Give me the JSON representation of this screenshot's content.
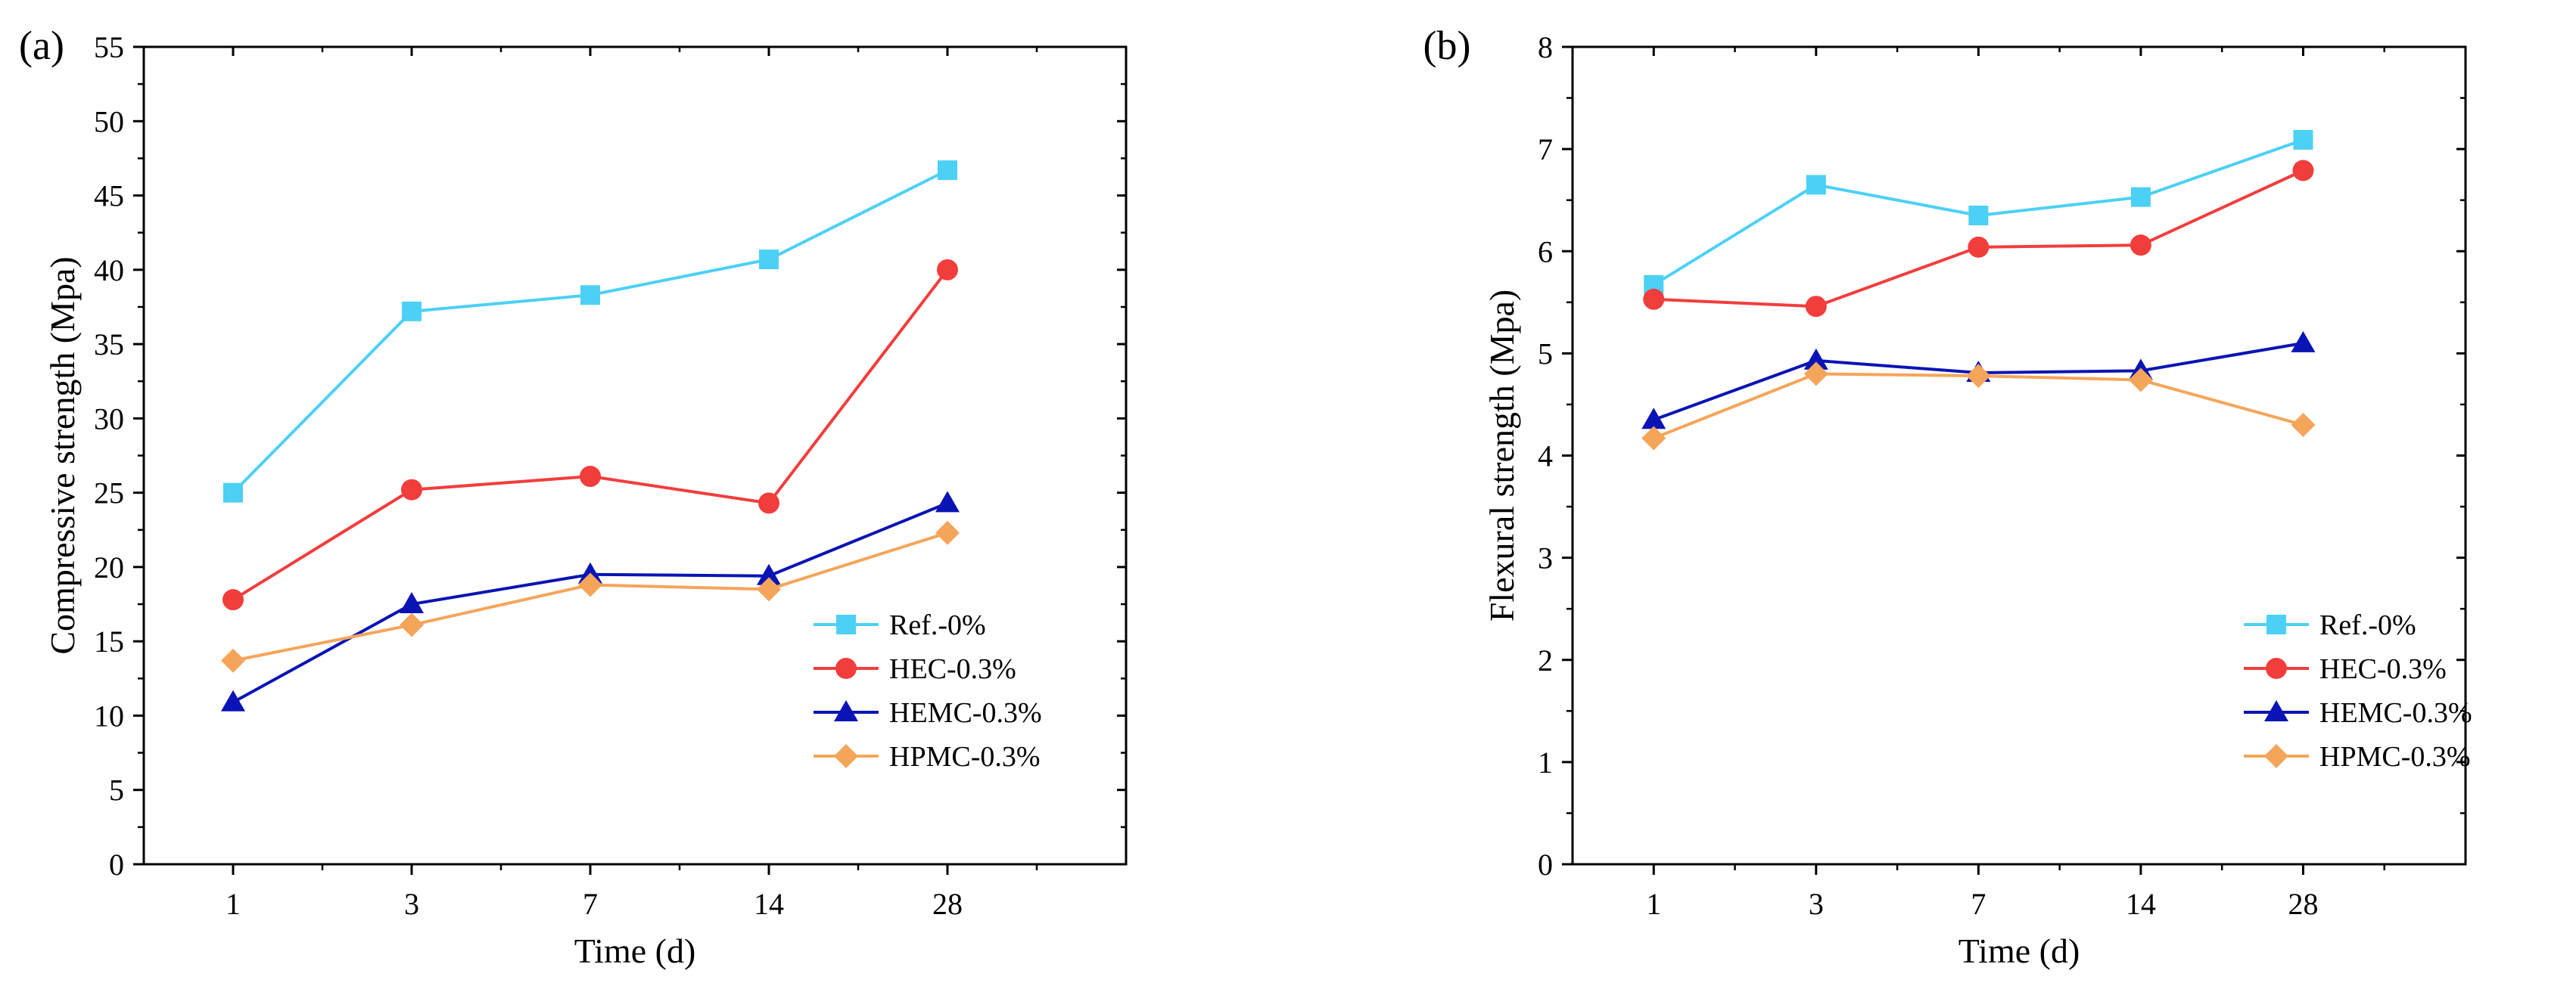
{
  "chart_data": [
    {
      "type": "line",
      "panel_label": "(a)",
      "xlabel": "Time (d)",
      "ylabel": "Compressive strength (Mpa)",
      "categories": [
        "1",
        "3",
        "7",
        "14",
        "28"
      ],
      "ylim": [
        0,
        55
      ],
      "yticks": [
        "0",
        "5",
        "10",
        "15",
        "20",
        "25",
        "30",
        "35",
        "40",
        "45",
        "50",
        "55"
      ],
      "legend_position": "lower-right",
      "series": [
        {
          "name": "Ref.-0%",
          "values": [
            25.0,
            37.2,
            38.3,
            40.7,
            46.7
          ],
          "color": "#4dd0f5",
          "marker": "square"
        },
        {
          "name": "HEC-0.3%",
          "values": [
            17.8,
            25.2,
            26.1,
            24.3,
            40.0
          ],
          "color": "#f23d3d",
          "marker": "circle"
        },
        {
          "name": "HEMC-0.3%",
          "values": [
            10.9,
            17.5,
            19.5,
            19.4,
            24.3
          ],
          "color": "#0a14b4",
          "marker": "triangle"
        },
        {
          "name": "HPMC-0.3%",
          "values": [
            13.7,
            16.1,
            18.8,
            18.5,
            22.3
          ],
          "color": "#f5a55a",
          "marker": "diamond"
        }
      ]
    },
    {
      "type": "line",
      "panel_label": "(b)",
      "xlabel": "Time (d)",
      "ylabel": "Flexural strength (Mpa)",
      "categories": [
        "1",
        "3",
        "7",
        "14",
        "28"
      ],
      "ylim": [
        0,
        8
      ],
      "yticks": [
        "0",
        "1",
        "2",
        "3",
        "4",
        "5",
        "6",
        "7",
        "8"
      ],
      "legend_position": "lower-right",
      "series": [
        {
          "name": "Ref.-0%",
          "values": [
            5.67,
            6.65,
            6.35,
            6.53,
            7.09
          ],
          "color": "#4dd0f5",
          "marker": "square"
        },
        {
          "name": "HEC-0.3%",
          "values": [
            5.53,
            5.46,
            6.04,
            6.06,
            6.79
          ],
          "color": "#f23d3d",
          "marker": "circle"
        },
        {
          "name": "HEMC-0.3%",
          "values": [
            4.35,
            4.93,
            4.81,
            4.83,
            5.1
          ],
          "color": "#0a14b4",
          "marker": "triangle"
        },
        {
          "name": "HPMC-0.3%",
          "values": [
            4.17,
            4.8,
            4.78,
            4.74,
            4.3
          ],
          "color": "#f5a55a",
          "marker": "diamond"
        }
      ]
    }
  ]
}
